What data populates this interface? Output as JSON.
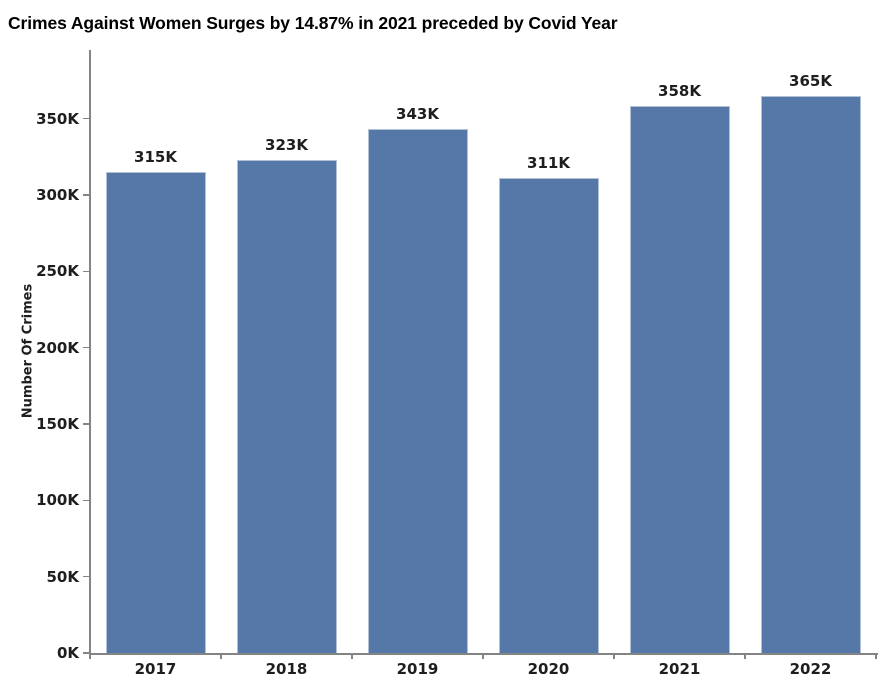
{
  "chart_data": {
    "type": "bar",
    "title": "Crimes Against Women Surges by 14.87% in 2021 preceded by Covid Year",
    "categories": [
      "2017",
      "2018",
      "2019",
      "2020",
      "2021",
      "2022"
    ],
    "values": [
      315000,
      323000,
      343000,
      311000,
      358000,
      365000
    ],
    "value_labels": [
      "315K",
      "323K",
      "343K",
      "311K",
      "358K",
      "365K"
    ],
    "xlabel": "",
    "ylabel": "Number Of Crimes",
    "ylim": [
      0,
      395000
    ],
    "ytick_values": [
      0,
      50000,
      100000,
      150000,
      200000,
      250000,
      300000,
      350000
    ],
    "ytick_labels": [
      "0K",
      "50K",
      "100K",
      "150K",
      "200K",
      "250K",
      "300K",
      "350K"
    ],
    "grid": false,
    "legend": "none",
    "bar_color": "#5578a8",
    "bar_border_color": "#b3c1d6",
    "axis_color": "#848484",
    "label_color": "#1e1e1e"
  }
}
